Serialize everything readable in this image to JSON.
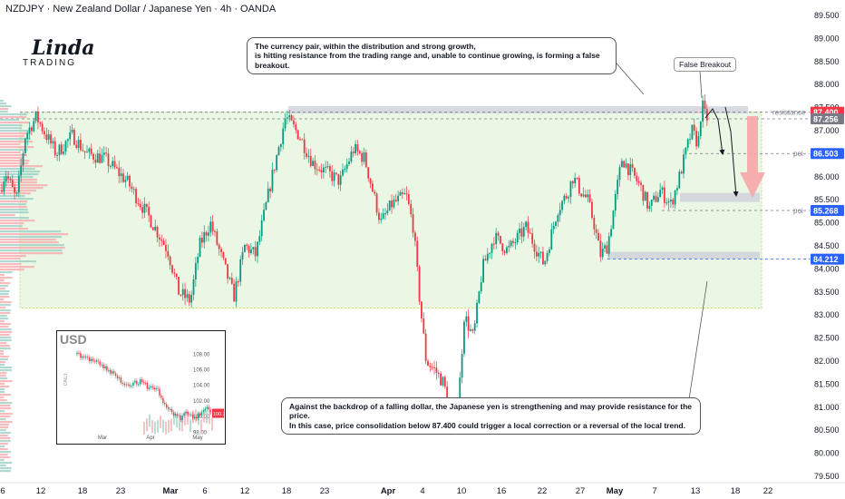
{
  "header": {
    "title": "NZDJPY · New Zealand Dollar / Japanese Yen · 4h · OANDA"
  },
  "logo": {
    "main": "Linda",
    "sub": "TRADING"
  },
  "annotations": {
    "top_note": [
      "The currency pair, within the distribution and strong growth,",
      "is hitting resistance from the trading range and, unable to continue growing, is forming a false breakout."
    ],
    "false_breakout": "False Breakout",
    "bottom_note": [
      "Against the backdrop of a falling dollar, the Japanese yen is strengthening and may provide resistance for the price.",
      "In this case, price consolidation below 87.400 could trigger a local correction or a reversal of the local trend."
    ],
    "resistance_label": "resistance",
    "poi_label": "poi"
  },
  "colors": {
    "up": "#089981",
    "down": "#f23645",
    "zone": "#e9f7e4",
    "box": "#d1d4dc",
    "arrow": "#f7a5a8"
  },
  "chart_data": {
    "type": "candlestick",
    "y_axis": {
      "min": 79.5,
      "max": 89.5,
      "ticks": [
        "89.500",
        "89.000",
        "88.500",
        "88.000",
        "87.500",
        "87.000",
        "86.500",
        "86.000",
        "85.500",
        "85.000",
        "84.500",
        "84.000",
        "83.500",
        "83.000",
        "82.500",
        "82.000",
        "81.500",
        "81.000",
        "80.500",
        "80.000",
        "79.500"
      ]
    },
    "x_axis": {
      "ticks": [
        "6",
        "12",
        "18",
        "23",
        "Mar",
        "6",
        "12",
        "18",
        "23",
        "Apr",
        "4",
        "10",
        "16",
        "22",
        "27",
        "May",
        "7",
        "13",
        "18",
        "22"
      ]
    },
    "price_labels": [
      {
        "value": "87.400",
        "color": "#f23645"
      },
      {
        "value": "87.256",
        "color": "#787b86"
      },
      {
        "value": "86.503",
        "color": "#2962ff"
      },
      {
        "value": "85.268",
        "color": "#2962ff"
      },
      {
        "value": "84.212",
        "color": "#2962ff"
      }
    ],
    "levels": {
      "resistance": 87.4,
      "poi_upper": 86.503,
      "poi_lower": 85.268,
      "support": 84.212
    },
    "range_zone": [
      83.15,
      87.4
    ],
    "path": [
      [
        0,
        85.7
      ],
      [
        6,
        86.1
      ],
      [
        18,
        85.5
      ],
      [
        28,
        86.9
      ],
      [
        40,
        87.3
      ],
      [
        62,
        86.5
      ],
      [
        80,
        86.9
      ],
      [
        95,
        86.5
      ],
      [
        115,
        86.4
      ],
      [
        140,
        85.9
      ],
      [
        165,
        85.1
      ],
      [
        185,
        84.4
      ],
      [
        197,
        83.5
      ],
      [
        210,
        83.3
      ],
      [
        220,
        84.5
      ],
      [
        232,
        85.0
      ],
      [
        245,
        84.2
      ],
      [
        258,
        83.4
      ],
      [
        270,
        84.5
      ],
      [
        282,
        84.3
      ],
      [
        300,
        86.0
      ],
      [
        315,
        87.3
      ],
      [
        330,
        86.9
      ],
      [
        345,
        86.3
      ],
      [
        360,
        86.1
      ],
      [
        375,
        85.9
      ],
      [
        390,
        86.6
      ],
      [
        402,
        86.4
      ],
      [
        420,
        85.0
      ],
      [
        432,
        85.4
      ],
      [
        448,
        85.6
      ],
      [
        456,
        84.9
      ],
      [
        462,
        83.5
      ],
      [
        470,
        82.0
      ],
      [
        480,
        81.8
      ],
      [
        490,
        81.5
      ],
      [
        498,
        80.4
      ],
      [
        505,
        80.9
      ],
      [
        512,
        83.0
      ],
      [
        522,
        82.5
      ],
      [
        532,
        84.0
      ],
      [
        545,
        84.7
      ],
      [
        560,
        84.4
      ],
      [
        580,
        84.9
      ],
      [
        600,
        84.1
      ],
      [
        615,
        85.3
      ],
      [
        625,
        85.6
      ],
      [
        632,
        86.0
      ],
      [
        640,
        85.7
      ],
      [
        648,
        85.5
      ],
      [
        655,
        85.0
      ],
      [
        662,
        84.3
      ],
      [
        670,
        84.5
      ],
      [
        676,
        85.2
      ],
      [
        686,
        86.4
      ],
      [
        696,
        86.1
      ],
      [
        706,
        85.8
      ],
      [
        716,
        85.3
      ],
      [
        728,
        85.7
      ],
      [
        740,
        85.4
      ],
      [
        748,
        85.9
      ],
      [
        756,
        86.5
      ],
      [
        763,
        87.0
      ],
      [
        770,
        86.7
      ],
      [
        774,
        87.6
      ],
      [
        778,
        87.3
      ],
      [
        782,
        87.25
      ]
    ],
    "inset": {
      "title": "USD",
      "y_ticks": [
        "108.00",
        "106.00",
        "104.00",
        "102.00",
        "100.00",
        "98.00"
      ],
      "x_ticks": [
        "Mar",
        "Apr",
        "May"
      ],
      "last_value": "100.30",
      "side_label": "DAILY",
      "path": [
        [
          0,
          107.9
        ],
        [
          20,
          107.0
        ],
        [
          40,
          105.8
        ],
        [
          60,
          104.0
        ],
        [
          80,
          104.3
        ],
        [
          90,
          103.6
        ],
        [
          100,
          103.5
        ],
        [
          110,
          101.2
        ],
        [
          120,
          100.4
        ],
        [
          130,
          99.6
        ],
        [
          135,
          100.3
        ],
        [
          150,
          99.8
        ],
        [
          160,
          101.2
        ],
        [
          168,
          100.3
        ]
      ]
    }
  }
}
